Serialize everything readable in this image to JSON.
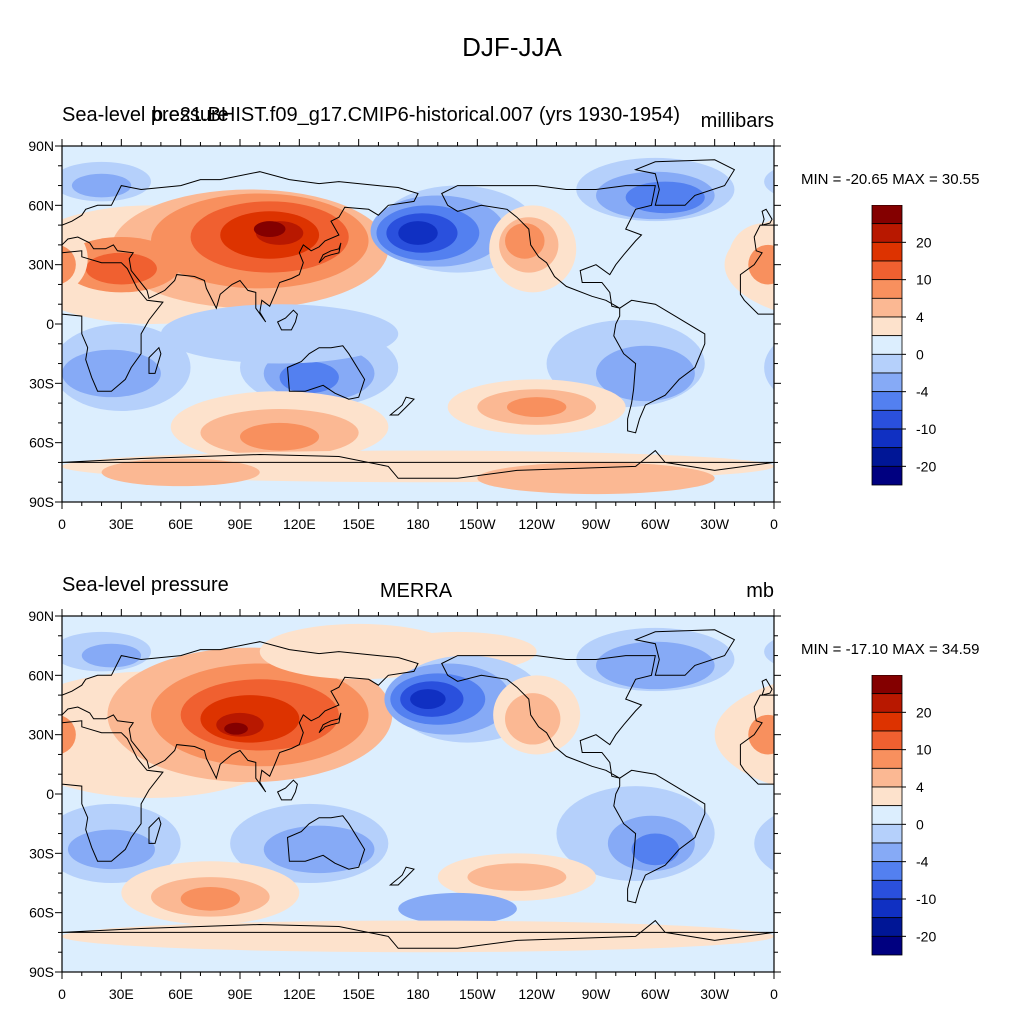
{
  "title": "DJF-JJA",
  "panels": [
    {
      "left_title": "Sea-level pressure",
      "center_title": "b.e21.BHIST.f09_g17.CMIP6-historical.007 (yrs 1930-1954)",
      "right_title": "millibars",
      "min_max": "MIN = -20.65 MAX =  30.55"
    },
    {
      "left_title": "Sea-level pressure",
      "center_title": "MERRA",
      "right_title": "mb",
      "min_max": "MIN = -17.10 MAX =  34.59"
    }
  ],
  "x_tick_labels": [
    "0",
    "30E",
    "60E",
    "90E",
    "120E",
    "150E",
    "180",
    "150W",
    "120W",
    "90W",
    "60W",
    "30W",
    "0"
  ],
  "y_tick_labels": [
    "90N",
    "60N",
    "30N",
    "0",
    "30S",
    "60S",
    "90S"
  ],
  "colorbar": {
    "labels": [
      "20",
      "10",
      "4",
      "0",
      "-4",
      "-10",
      "-20"
    ],
    "colors": [
      "#840000",
      "#b81800",
      "#dd3300",
      "#f06030",
      "#f8905e",
      "#fbb893",
      "#fde2cc",
      "#dceefe",
      "#b5d0fb",
      "#86aaf6",
      "#5380f0",
      "#2a50dd",
      "#1030c2",
      "#001696",
      "#000080"
    ]
  },
  "map_colors": {
    "ocean": "#dceefe",
    "coast": "#000000"
  }
}
